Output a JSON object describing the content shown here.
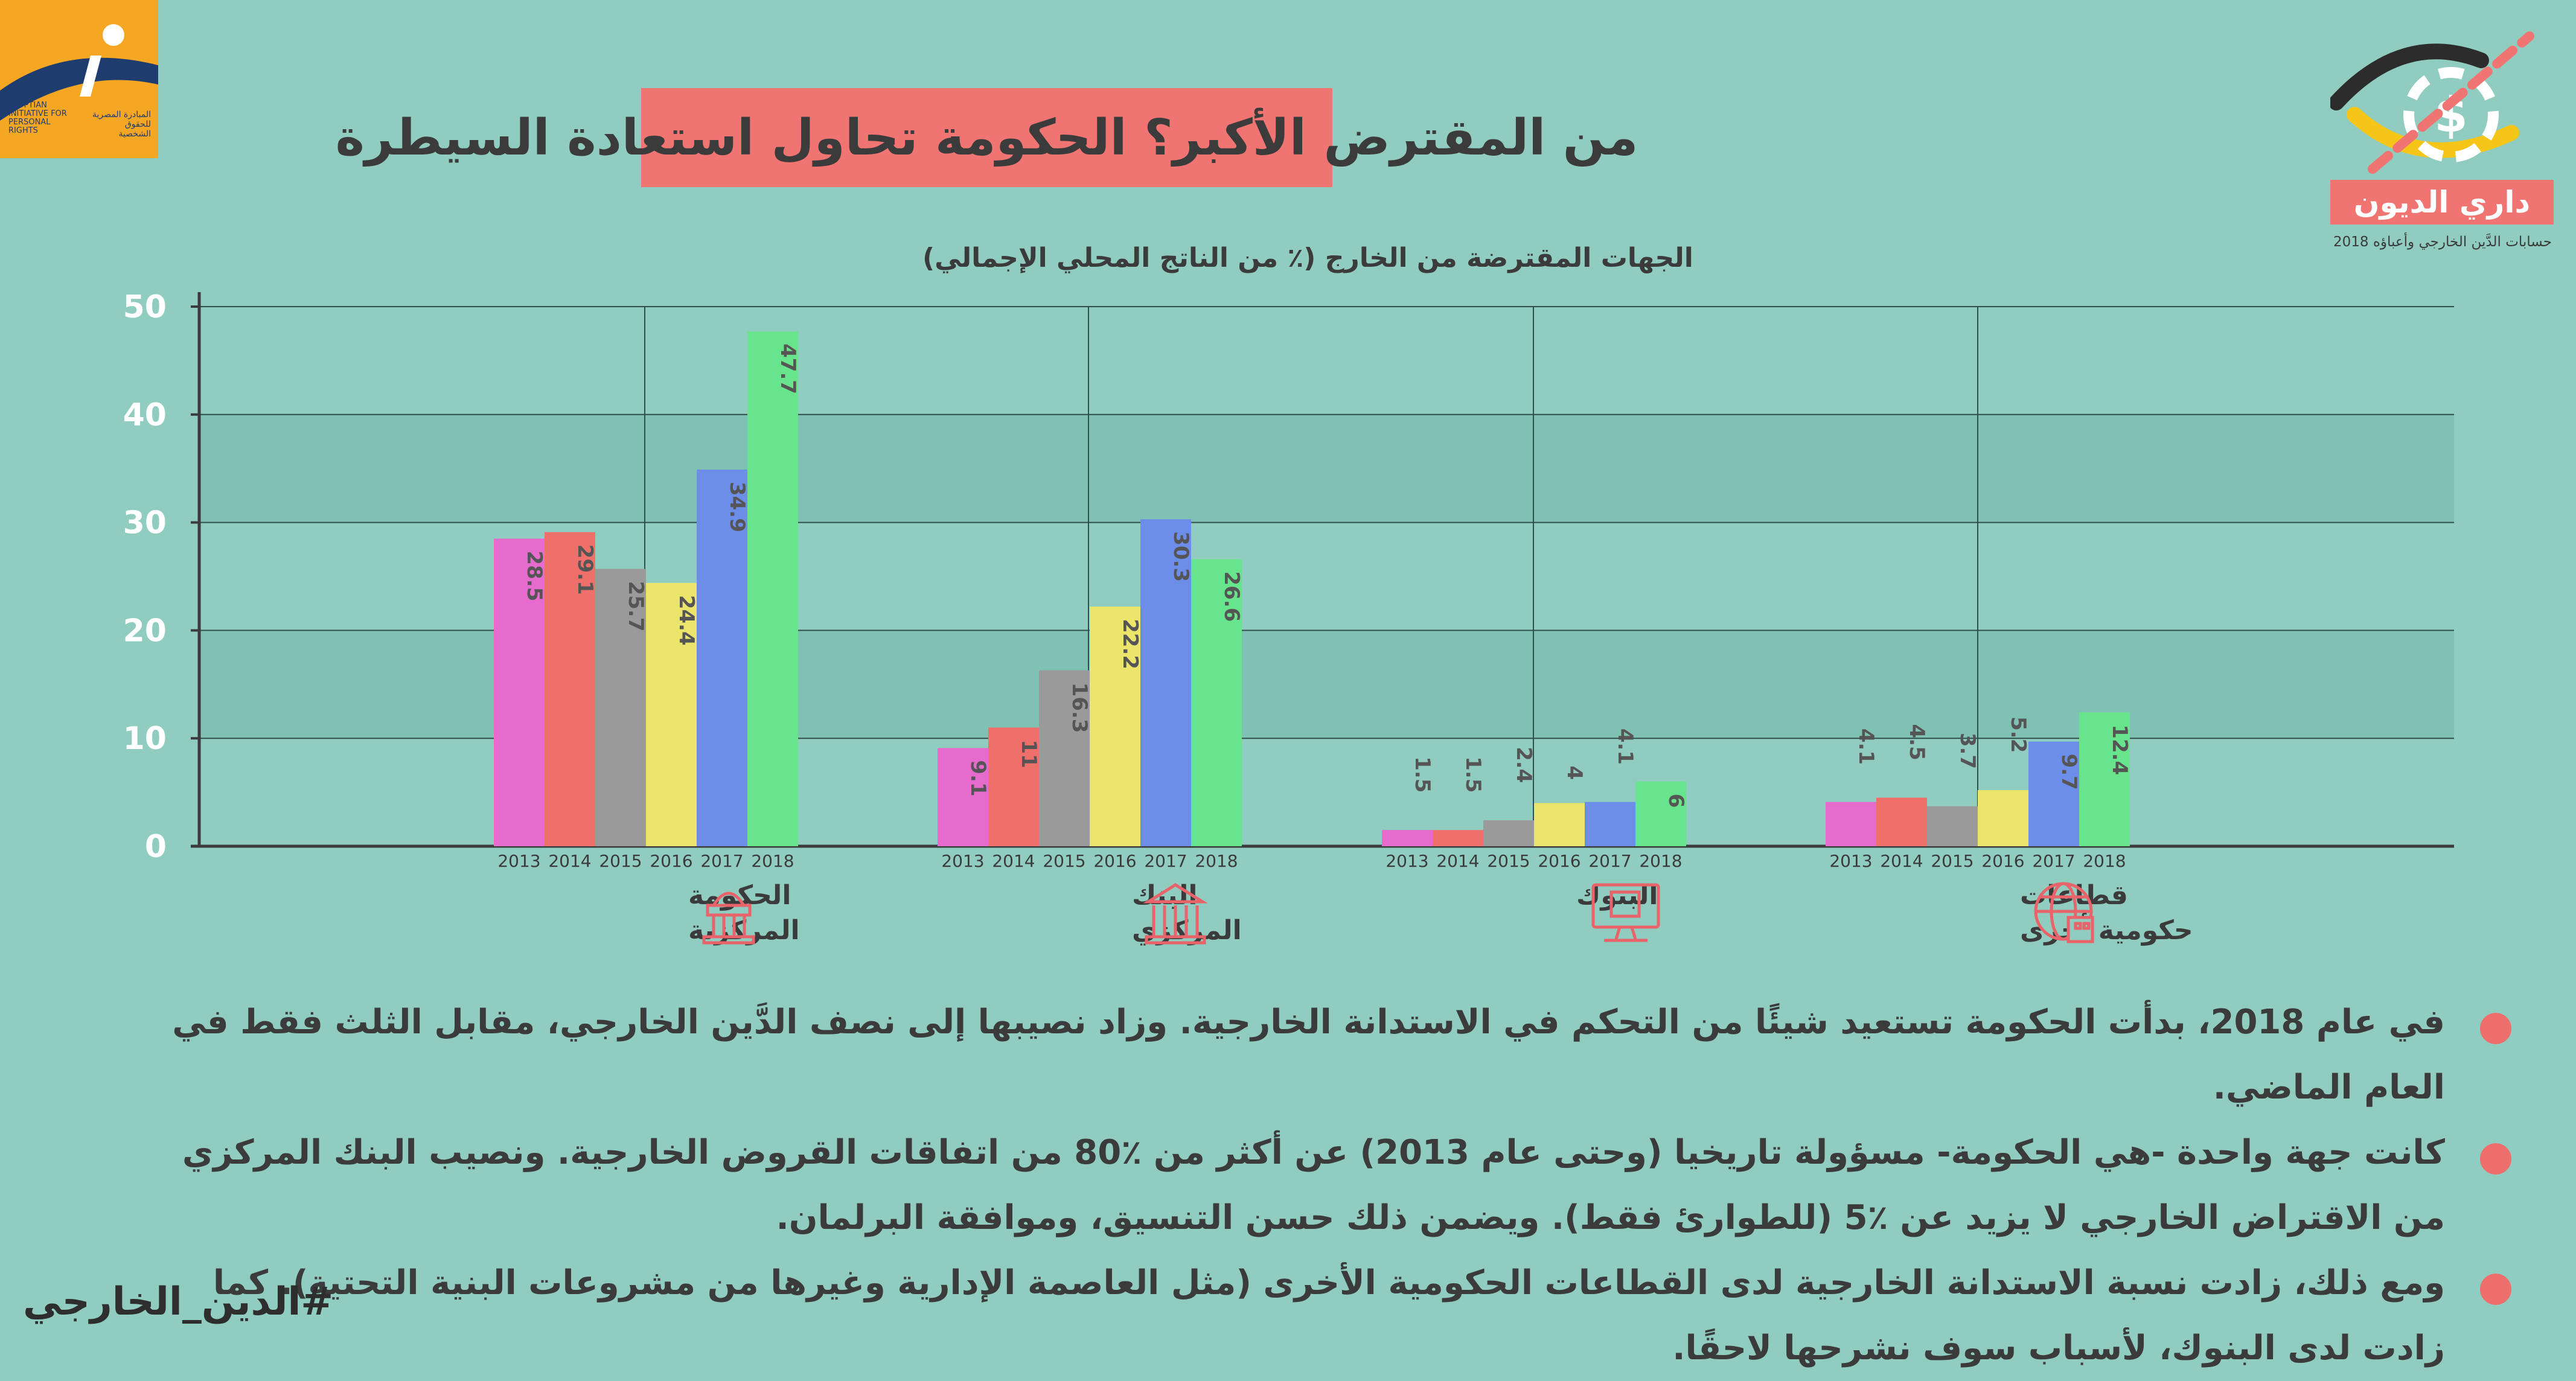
{
  "title": "من المقترض الأكبر؟ الحكومة تحاول استعادة السيطرة",
  "logos": {
    "eipr_en": "EGYPTIAN INITIATIVE FOR PERSONAL RIGHTS",
    "eipr_ar": "المبادرة المصرية للحقوق الشخصية",
    "debt_label": "داري الديون",
    "debt_tagline": "حسابات الدَّين الخارجي وأعباؤه 2018"
  },
  "chart_data": {
    "type": "bar",
    "title": "الجهات المقترضة من الخارج (٪ من الناتج المحلي الإجمالي)",
    "ylim": [
      0,
      50
    ],
    "yticks": [
      0,
      10,
      20,
      30,
      40,
      50
    ],
    "grid": true,
    "years": [
      "2013",
      "2014",
      "2015",
      "2016",
      "2017",
      "2018"
    ],
    "groups": [
      {
        "label_lines": [
          "الحكومة",
          "المركزية"
        ],
        "icon": "government-building-icon",
        "values": [
          28.5,
          29.1,
          25.7,
          24.4,
          34.9,
          47.7
        ],
        "labels": [
          "28.5",
          "29.1",
          "25.7",
          "24.4",
          "34.9",
          "47.7"
        ]
      },
      {
        "label_lines": [
          "البنك",
          "المركزي"
        ],
        "icon": "central-bank-icon",
        "values": [
          9.1,
          11,
          16.3,
          22.2,
          30.3,
          26.6
        ],
        "labels": [
          "9.1",
          "11",
          "16.3",
          "22.2",
          "30.3",
          "26.6"
        ]
      },
      {
        "label_lines": [
          "البنوك"
        ],
        "icon": "bank-computer-icon",
        "values": [
          1.5,
          1.5,
          2.4,
          4,
          4.1,
          6
        ],
        "labels": [
          "1.5",
          "1.5",
          "2.4",
          "4",
          "4.1",
          "6"
        ]
      },
      {
        "label_lines": [
          "قطاعات",
          "حكومية أخرى"
        ],
        "icon": "globe-buildings-icon",
        "values": [
          4.1,
          4.5,
          3.7,
          5.2,
          9.7,
          12.4
        ],
        "labels": [
          "4.1",
          "4.5",
          "3.7",
          "5.2",
          "9.7",
          "12.4"
        ]
      }
    ],
    "colors": [
      "#e56bcc",
      "#ef6f6b",
      "#9a9a9a",
      "#ece56c",
      "#6d8ee8",
      "#68e58c"
    ]
  },
  "notes": [
    "في عام 2018، بدأت الحكومة تستعيد شيئًا من التحكم في الاستدانة الخارجية. وزاد نصيبها إلى نصف الدَّين الخارجي، مقابل الثلث فقط في العام الماضي.",
    "كانت جهة واحدة -هي الحكومة- مسؤولة تاريخيا (وحتى عام 2013) عن أكثر من ٪80 من اتفاقات القروض الخارجية. ونصيب البنك المركزي من الاقتراض الخارجي لا يزيد عن ٪5 (للطوارئ فقط). ويضمن ذلك حسن التنسيق، وموافقة البرلمان.",
    "ومع ذلك، زادت نسبة الاستدانة الخارجية لدى القطاعات الحكومية الأخرى (مثل العاصمة الإدارية وغيرها من مشروعات البنية التحتية). كما زادت لدى البنوك، لأسباب سوف نشرحها لاحقًا."
  ],
  "hashtag": "#الدين_الخارجي"
}
